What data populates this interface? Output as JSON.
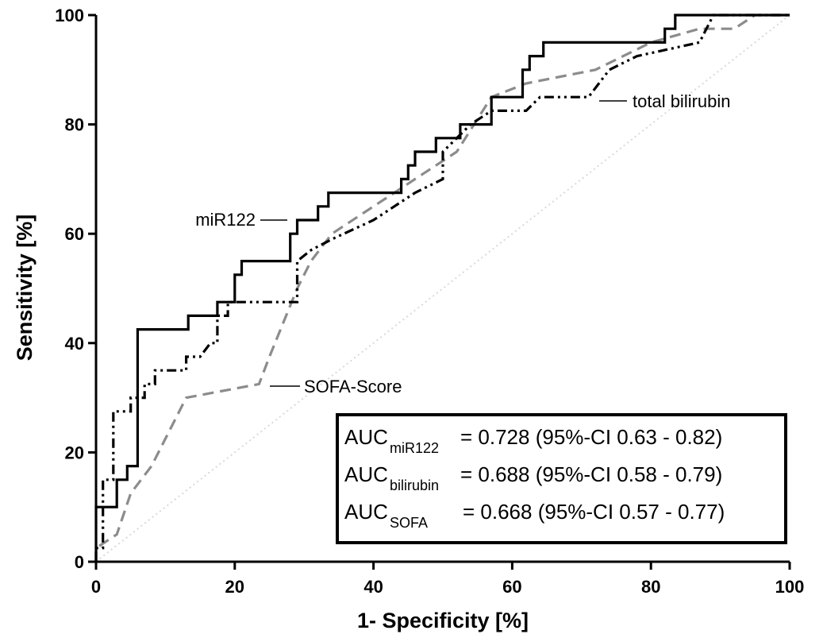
{
  "chart_data": {
    "type": "line",
    "xlabel": "1- Specificity [%]",
    "ylabel": "Sensitivity [%]",
    "xlim": [
      0,
      100
    ],
    "ylim": [
      0,
      100
    ],
    "xticks": [
      0,
      20,
      40,
      60,
      80,
      100
    ],
    "yticks": [
      0,
      20,
      40,
      60,
      80,
      100
    ],
    "grid": false,
    "reference_line": {
      "points": [
        [
          0,
          0
        ],
        [
          100,
          100
        ]
      ],
      "color": "#d9d9d9"
    },
    "series": [
      {
        "name": "miR122",
        "style": "solid",
        "color": "#000000",
        "points": [
          [
            0,
            0
          ],
          [
            0,
            10
          ],
          [
            3,
            10
          ],
          [
            3,
            15
          ],
          [
            4.5,
            15
          ],
          [
            4.5,
            17.5
          ],
          [
            6,
            17.5
          ],
          [
            6,
            42.5
          ],
          [
            13.3,
            42.5
          ],
          [
            13.3,
            45
          ],
          [
            17.5,
            45
          ],
          [
            17.5,
            47.5
          ],
          [
            20,
            47.5
          ],
          [
            20,
            52.5
          ],
          [
            21,
            52.5
          ],
          [
            21,
            55
          ],
          [
            28,
            55
          ],
          [
            28,
            60
          ],
          [
            29,
            60
          ],
          [
            29,
            62.5
          ],
          [
            32,
            62.5
          ],
          [
            32,
            65
          ],
          [
            33.5,
            65
          ],
          [
            33.5,
            67.5
          ],
          [
            44,
            67.5
          ],
          [
            44,
            70
          ],
          [
            45,
            70
          ],
          [
            45,
            72.5
          ],
          [
            46,
            72.5
          ],
          [
            46,
            75
          ],
          [
            49,
            75
          ],
          [
            49,
            77.5
          ],
          [
            52.5,
            77.5
          ],
          [
            52.5,
            80
          ],
          [
            57,
            80
          ],
          [
            57,
            85
          ],
          [
            61.5,
            85
          ],
          [
            61.5,
            90
          ],
          [
            62.5,
            90
          ],
          [
            62.5,
            92.5
          ],
          [
            64.5,
            92.5
          ],
          [
            64.5,
            95
          ],
          [
            82,
            95
          ],
          [
            82,
            97.5
          ],
          [
            83.5,
            97.5
          ],
          [
            83.5,
            100
          ],
          [
            100,
            100
          ]
        ]
      },
      {
        "name": "total bilirubin",
        "style": "dash-dot-dot",
        "color": "#000000",
        "points": [
          [
            0,
            0
          ],
          [
            0,
            2.5
          ],
          [
            1,
            2.5
          ],
          [
            1,
            15
          ],
          [
            2.5,
            15
          ],
          [
            2.5,
            27.5
          ],
          [
            5,
            27.5
          ],
          [
            5,
            30
          ],
          [
            7,
            30
          ],
          [
            7,
            32.5
          ],
          [
            8.5,
            32.5
          ],
          [
            8.5,
            35
          ],
          [
            13,
            35
          ],
          [
            13,
            37.5
          ],
          [
            15,
            37.5
          ],
          [
            16.5,
            40
          ],
          [
            17.5,
            40
          ],
          [
            17.5,
            45
          ],
          [
            19,
            45
          ],
          [
            19,
            47.5
          ],
          [
            29,
            47.5
          ],
          [
            29,
            55
          ],
          [
            31,
            57
          ],
          [
            34,
            59
          ],
          [
            40,
            62.5
          ],
          [
            43,
            65
          ],
          [
            46,
            67.5
          ],
          [
            50,
            70
          ],
          [
            50,
            75
          ],
          [
            52,
            77.5
          ],
          [
            54,
            80
          ],
          [
            57,
            82.5
          ],
          [
            62,
            82.5
          ],
          [
            64,
            85
          ],
          [
            71,
            85
          ],
          [
            74,
            90
          ],
          [
            78,
            92.5
          ],
          [
            87,
            95
          ],
          [
            88,
            97.5
          ],
          [
            89,
            100
          ],
          [
            100,
            100
          ]
        ]
      },
      {
        "name": "SOFA-Score",
        "style": "dashed",
        "color": "#8c8c8c",
        "points": [
          [
            0,
            0
          ],
          [
            0,
            2.5
          ],
          [
            3,
            5
          ],
          [
            5,
            12.5
          ],
          [
            8,
            17.5
          ],
          [
            13,
            30
          ],
          [
            23.5,
            32.5
          ],
          [
            25,
            37.5
          ],
          [
            29,
            50
          ],
          [
            31,
            55
          ],
          [
            34,
            60
          ],
          [
            40,
            65
          ],
          [
            46,
            70
          ],
          [
            52,
            75
          ],
          [
            57,
            85
          ],
          [
            62,
            87.5
          ],
          [
            72,
            90
          ],
          [
            80,
            95
          ],
          [
            87,
            97.5
          ],
          [
            92,
            97.5
          ],
          [
            95,
            100
          ],
          [
            100,
            100
          ]
        ]
      }
    ],
    "annotations": [
      {
        "text": "miR122",
        "x": 27,
        "y": 62.5
      },
      {
        "text": "total bilirubin",
        "x": 76,
        "y": 84.5
      },
      {
        "text": "SOFA-Score",
        "x": 25.5,
        "y": 32.5
      }
    ],
    "auc_box": {
      "rows": [
        {
          "prefix": "AUC",
          "sub": "miR122",
          "text": "= 0.728 (95%-CI 0.63 - 0.82)"
        },
        {
          "prefix": "AUC",
          "sub": "bilirubin",
          "text": "= 0.688 (95%-CI 0.58 - 0.79)"
        },
        {
          "prefix": "AUC",
          "sub": "SOFA",
          "text": "= 0.668 (95%-CI 0.57 - 0.77)"
        }
      ]
    }
  }
}
